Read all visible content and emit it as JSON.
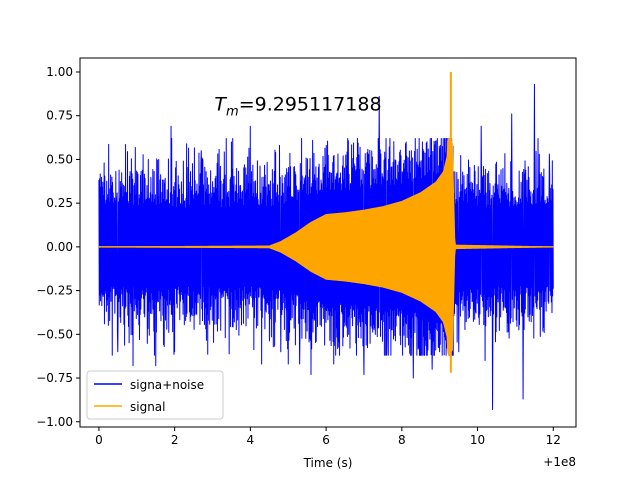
{
  "chart_data": {
    "type": "line",
    "title": "",
    "xlabel": "Time (s)",
    "ylabel": "",
    "x_offset_label": "+1e8",
    "xlim": [
      -0.5,
      12.6
    ],
    "ylim": [
      -1.03,
      1.08
    ],
    "x_ticks": [
      0,
      2,
      4,
      6,
      8,
      10,
      12
    ],
    "x_tick_labels": [
      "0",
      "2",
      "4",
      "6",
      "8",
      "10",
      "12"
    ],
    "y_ticks": [
      -1.0,
      -0.75,
      -0.5,
      -0.25,
      0.0,
      0.25,
      0.5,
      0.75,
      1.0
    ],
    "y_tick_labels": [
      "−1.00",
      "−0.75",
      "−0.50",
      "−0.25",
      "0.00",
      "0.25",
      "0.50",
      "0.75",
      "1.00"
    ],
    "grid": false,
    "legend_position": "lower-left",
    "annotation": {
      "symbol": "T",
      "subscript": "m",
      "text": "=9.295117188",
      "x": 3.05,
      "y": 0.78
    },
    "series": [
      {
        "name": "signa+noise",
        "color": "#0000ff",
        "x_range": [
          0,
          12
        ],
        "envelope_typical": 0.5,
        "spikes": [
          {
            "x": 0.1,
            "y": 0.37
          },
          {
            "x": 0.5,
            "y": -0.6
          },
          {
            "x": 0.9,
            "y": -0.68
          },
          {
            "x": 1.3,
            "y": 0.5
          },
          {
            "x": 1.5,
            "y": -0.68
          },
          {
            "x": 1.9,
            "y": 0.69
          },
          {
            "x": 2.0,
            "y": -0.6
          },
          {
            "x": 2.7,
            "y": 0.55
          },
          {
            "x": 3.5,
            "y": 0.6
          },
          {
            "x": 4.0,
            "y": 0.69
          },
          {
            "x": 4.3,
            "y": -0.67
          },
          {
            "x": 4.8,
            "y": -0.6
          },
          {
            "x": 5.0,
            "y": -0.67
          },
          {
            "x": 5.3,
            "y": -0.67
          },
          {
            "x": 5.6,
            "y": -0.73
          },
          {
            "x": 6.0,
            "y": 0.58
          },
          {
            "x": 6.2,
            "y": -0.67
          },
          {
            "x": 6.9,
            "y": 0.57
          },
          {
            "x": 7.0,
            "y": -0.73
          },
          {
            "x": 7.4,
            "y": 0.86
          },
          {
            "x": 7.6,
            "y": -0.62
          },
          {
            "x": 8.1,
            "y": 0.59
          },
          {
            "x": 8.3,
            "y": -0.75
          },
          {
            "x": 8.7,
            "y": 0.56
          },
          {
            "x": 8.8,
            "y": -0.7
          },
          {
            "x": 9.0,
            "y": -0.6
          },
          {
            "x": 9.3,
            "y": 0.57
          },
          {
            "x": 9.5,
            "y": -0.6
          },
          {
            "x": 10.1,
            "y": 0.69
          },
          {
            "x": 10.2,
            "y": -0.65
          },
          {
            "x": 10.4,
            "y": -0.93
          },
          {
            "x": 10.9,
            "y": 0.76
          },
          {
            "x": 11.2,
            "y": -0.87
          },
          {
            "x": 11.5,
            "y": 0.93
          },
          {
            "x": 11.9,
            "y": 0.53
          }
        ]
      },
      {
        "name": "signal",
        "color": "#ffa500",
        "x_range": [
          0,
          12
        ],
        "envelope": [
          {
            "x": 0.0,
            "y": 0.0
          },
          {
            "x": 4.5,
            "y": 0.005
          },
          {
            "x": 4.8,
            "y": 0.03
          },
          {
            "x": 5.2,
            "y": 0.08
          },
          {
            "x": 5.6,
            "y": 0.14
          },
          {
            "x": 6.0,
            "y": 0.185
          },
          {
            "x": 6.5,
            "y": 0.195
          },
          {
            "x": 7.0,
            "y": 0.21
          },
          {
            "x": 7.5,
            "y": 0.23
          },
          {
            "x": 8.0,
            "y": 0.26
          },
          {
            "x": 8.5,
            "y": 0.31
          },
          {
            "x": 8.9,
            "y": 0.37
          },
          {
            "x": 9.1,
            "y": 0.43
          },
          {
            "x": 9.2,
            "y": 0.52
          },
          {
            "x": 9.29,
            "y": 1.0
          },
          {
            "x": 9.4,
            "y": 0.01
          },
          {
            "x": 12.0,
            "y": 0.0
          }
        ],
        "peak": {
          "x": 9.295,
          "y_max": 1.0,
          "y_min": -0.72
        }
      }
    ]
  }
}
